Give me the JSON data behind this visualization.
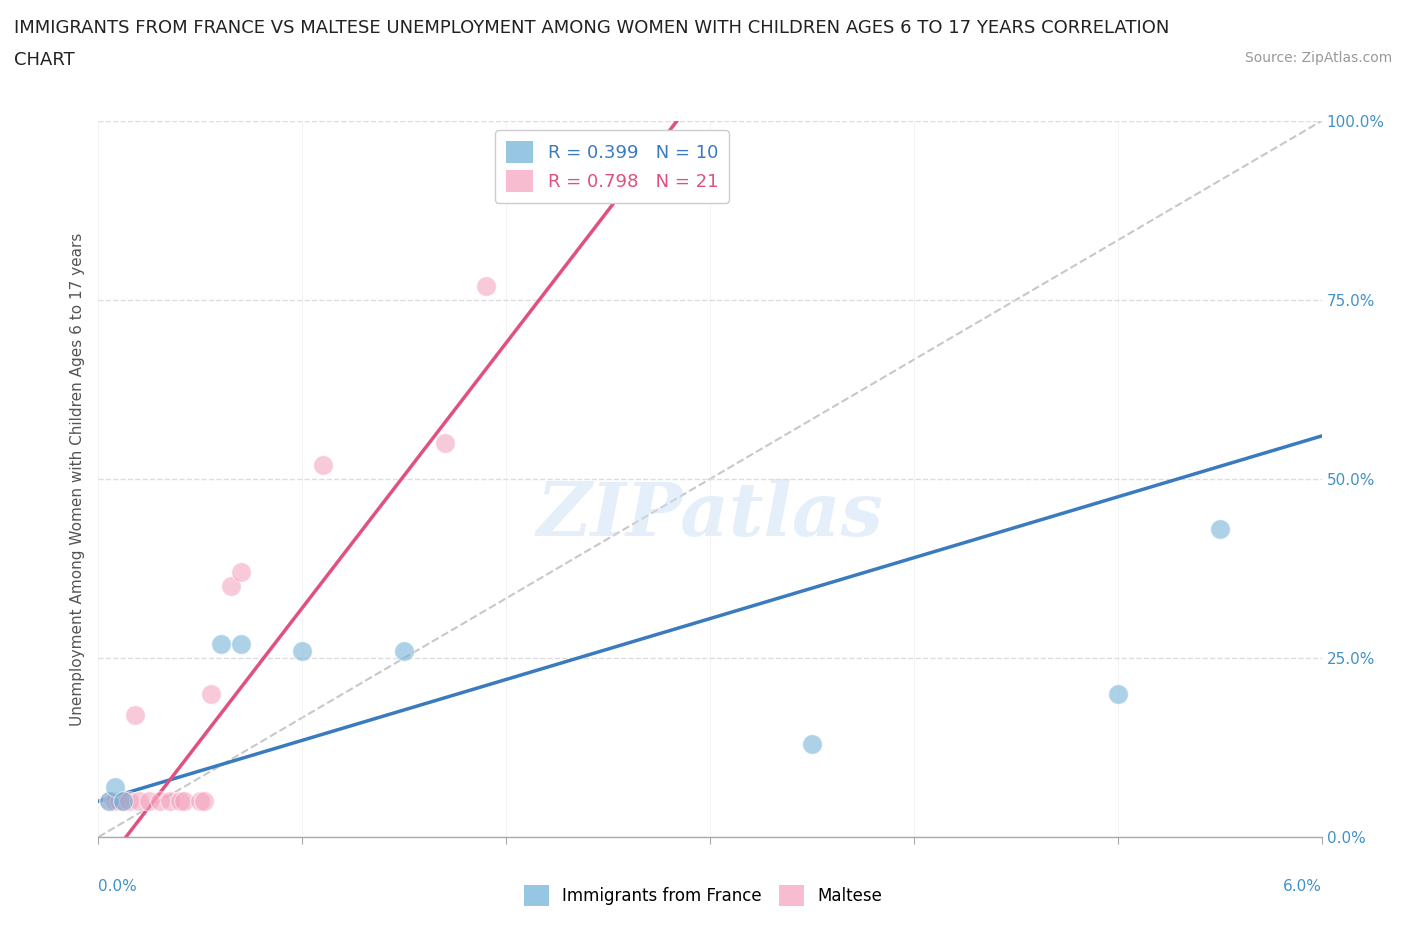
{
  "title_line1": "IMMIGRANTS FROM FRANCE VS MALTESE UNEMPLOYMENT AMONG WOMEN WITH CHILDREN AGES 6 TO 17 YEARS CORRELATION",
  "title_line2": "CHART",
  "source": "Source: ZipAtlas.com",
  "ylabel": "Unemployment Among Women with Children Ages 6 to 17 years",
  "xlim": [
    0.0,
    6.0
  ],
  "ylim": [
    0.0,
    100.0
  ],
  "yticks": [
    0.0,
    25.0,
    50.0,
    75.0,
    100.0
  ],
  "ytick_labels": [
    "0.0%",
    "25.0%",
    "50.0%",
    "75.0%",
    "100.0%"
  ],
  "legend_r1": "R = 0.399   N = 10",
  "legend_r2": "R = 0.798   N = 21",
  "legend_label1": "Immigrants from France",
  "legend_label2": "Maltese",
  "blue_scatter": [
    [
      0.05,
      5.0
    ],
    [
      0.08,
      7.0
    ],
    [
      0.12,
      5.0
    ],
    [
      0.6,
      27.0
    ],
    [
      0.7,
      27.0
    ],
    [
      1.0,
      26.0
    ],
    [
      1.5,
      26.0
    ],
    [
      3.5,
      13.0
    ],
    [
      5.0,
      20.0
    ],
    [
      5.5,
      43.0
    ]
  ],
  "pink_scatter": [
    [
      0.05,
      5.0
    ],
    [
      0.07,
      5.0
    ],
    [
      0.08,
      5.0
    ],
    [
      0.1,
      5.0
    ],
    [
      0.12,
      5.0
    ],
    [
      0.15,
      5.0
    ],
    [
      0.18,
      17.0
    ],
    [
      0.2,
      5.0
    ],
    [
      0.25,
      5.0
    ],
    [
      0.3,
      5.0
    ],
    [
      0.35,
      5.0
    ],
    [
      0.4,
      5.0
    ],
    [
      0.42,
      5.0
    ],
    [
      0.5,
      5.0
    ],
    [
      0.52,
      5.0
    ],
    [
      0.55,
      20.0
    ],
    [
      0.65,
      35.0
    ],
    [
      0.7,
      37.0
    ],
    [
      1.1,
      52.0
    ],
    [
      1.7,
      55.0
    ],
    [
      1.9,
      77.0
    ]
  ],
  "blue_color": "#6baed6",
  "pink_color": "#f4a0bb",
  "blue_line_color": "#3a7abf",
  "pink_line_color": "#e05080",
  "diag_line_color": "#c8c8c8",
  "background_color": "#ffffff",
  "watermark": "ZIPatlas",
  "title_fontsize": 13,
  "source_fontsize": 10,
  "blue_line_intercept": 5.0,
  "blue_line_slope": 8.5,
  "pink_line_intercept": -5.0,
  "pink_line_slope": 37.0
}
